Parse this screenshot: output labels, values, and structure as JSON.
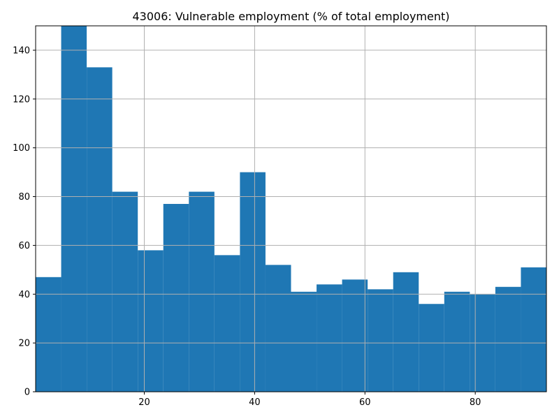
{
  "chart_data": {
    "type": "bar",
    "title": "43006: Vulnerable employment (% of total employment)",
    "xlabel": "",
    "ylabel": "",
    "xlim": [
      0.3,
      92.9
    ],
    "ylim": [
      0,
      150
    ],
    "grid": true,
    "bin_edges": [
      0.3,
      4.93,
      9.56,
      14.19,
      18.82,
      23.45,
      28.08,
      32.71,
      37.34,
      41.97,
      46.6,
      51.23,
      55.86,
      60.49,
      65.12,
      69.75,
      74.38,
      79.01,
      83.64,
      88.27,
      92.9
    ],
    "values": [
      47,
      150,
      133,
      82,
      58,
      77,
      82,
      56,
      90,
      52,
      41,
      44,
      46,
      42,
      49,
      36,
      41,
      40,
      43,
      51
    ],
    "x_ticks": [
      20,
      40,
      60,
      80
    ],
    "x_tick_labels": [
      "20",
      "40",
      "60",
      "80"
    ],
    "y_ticks": [
      0,
      20,
      40,
      60,
      80,
      100,
      120,
      140
    ],
    "y_tick_labels": [
      "0",
      "20",
      "40",
      "60",
      "80",
      "100",
      "120",
      "140"
    ],
    "colors": {
      "bar": "#1f77b4",
      "grid": "#b0b0b0",
      "axis": "#000000"
    }
  }
}
